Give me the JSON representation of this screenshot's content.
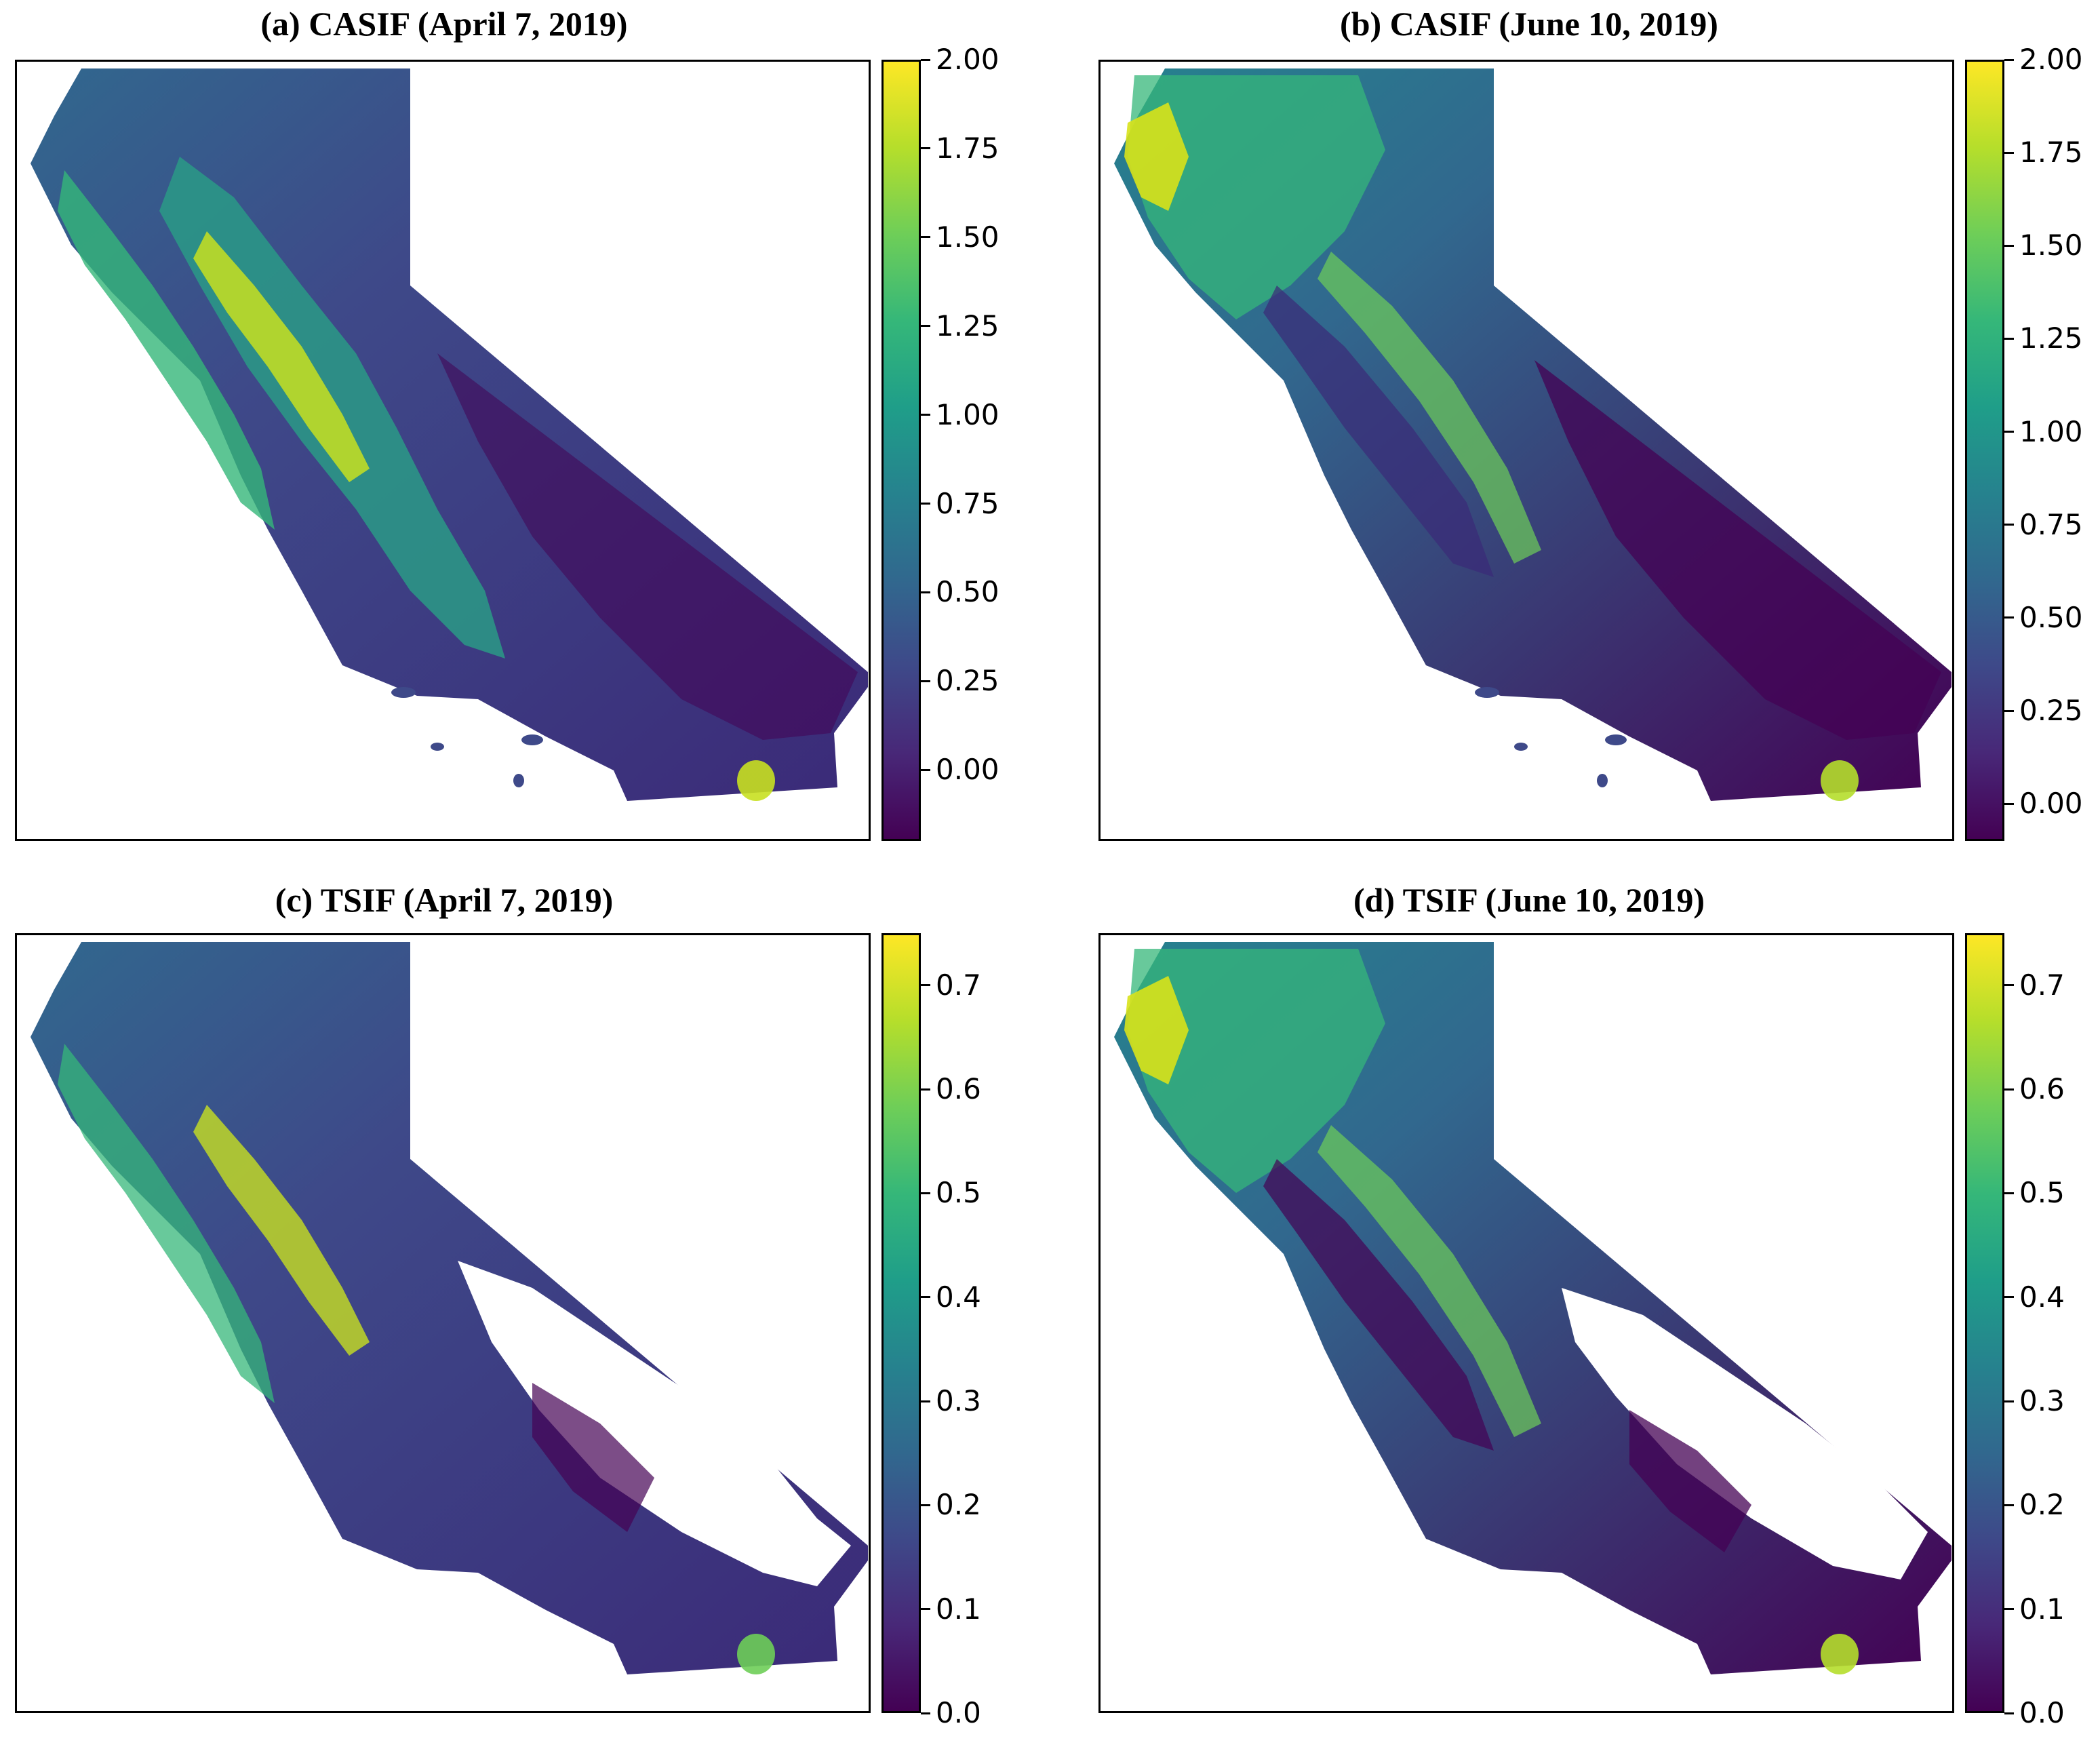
{
  "colormap": {
    "name": "viridis",
    "stops": [
      "#fde725",
      "#b5de2b",
      "#6ece58",
      "#35b779",
      "#1f9e89",
      "#26828e",
      "#31688e",
      "#3e4989",
      "#482878",
      "#440154"
    ]
  },
  "panels": [
    {
      "id": "a",
      "title": "(a) CASIF (April 7, 2019)",
      "colorbar": {
        "min": -0.2,
        "max": 2.0,
        "ticks": [
          2.0,
          1.75,
          1.5,
          1.25,
          1.0,
          0.75,
          0.5,
          0.25,
          0.0
        ],
        "tick_labels": [
          "2.00",
          "1.75",
          "1.50",
          "1.25",
          "1.00",
          "0.75",
          "0.50",
          "0.25",
          "0.00"
        ]
      }
    },
    {
      "id": "b",
      "title": "(b) CASIF (June 10, 2019)",
      "colorbar": {
        "min": -0.1,
        "max": 2.0,
        "ticks": [
          2.0,
          1.75,
          1.5,
          1.25,
          1.0,
          0.75,
          0.5,
          0.25,
          0.0
        ],
        "tick_labels": [
          "2.00",
          "1.75",
          "1.50",
          "1.25",
          "1.00",
          "0.75",
          "0.50",
          "0.25",
          "0.00"
        ]
      }
    },
    {
      "id": "c",
      "title": "(c) TSIF (April 7, 2019)",
      "colorbar": {
        "min": 0.0,
        "max": 0.75,
        "ticks": [
          0.7,
          0.6,
          0.5,
          0.4,
          0.3,
          0.2,
          0.1,
          0.0
        ],
        "tick_labels": [
          "0.7",
          "0.6",
          "0.5",
          "0.4",
          "0.3",
          "0.2",
          "0.1",
          "0.0"
        ]
      }
    },
    {
      "id": "d",
      "title": "(d) TSIF (June 10, 2019)",
      "colorbar": {
        "min": 0.0,
        "max": 0.75,
        "ticks": [
          0.7,
          0.6,
          0.5,
          0.4,
          0.3,
          0.2,
          0.1,
          0.0
        ],
        "tick_labels": [
          "0.7",
          "0.6",
          "0.5",
          "0.4",
          "0.3",
          "0.2",
          "0.1",
          "0.0"
        ]
      }
    }
  ]
}
